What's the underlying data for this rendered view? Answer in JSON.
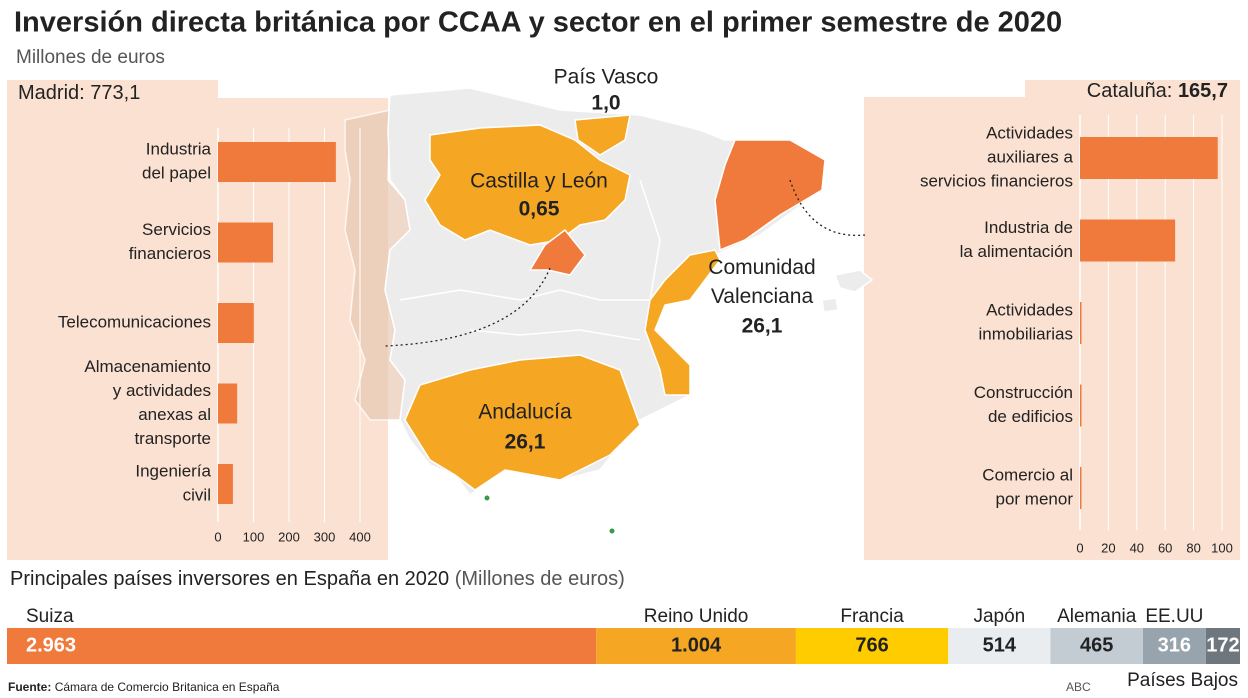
{
  "title": "Inversión directa británica por CCAA y sector en el primer semestre de 2020",
  "subtitle": "Millones de euros",
  "chart_data": [
    {
      "type": "bar",
      "title": "Madrid:",
      "total": 773.1,
      "total_label": "773,1",
      "bold_total": false,
      "categories": [
        [
          "Industria",
          "del papel"
        ],
        [
          "Servicios",
          "financieros"
        ],
        [
          "Telecomunicaciones"
        ],
        [
          "Almacenamiento",
          "y actividades",
          "anexas al",
          "transporte"
        ],
        [
          "Ingeniería",
          "civil"
        ]
      ],
      "values": [
        332,
        155,
        101,
        54,
        42
      ],
      "color": "#f07a3c",
      "xlim": [
        0,
        400
      ],
      "xticks": [
        0,
        100,
        200,
        300,
        400
      ],
      "grid": true
    },
    {
      "type": "bar",
      "title": "Cataluña:",
      "total": 165.7,
      "total_label": "165,7",
      "bold_total": true,
      "categories": [
        [
          "Actividades",
          "auxiliares a",
          "servicios financieros"
        ],
        [
          "Industria de",
          "la alimentación"
        ],
        [
          "Actividades",
          "inmobiliarias"
        ],
        [
          "Construcción",
          "de edificios"
        ],
        [
          "Comercio al",
          "por menor"
        ]
      ],
      "values": [
        97,
        67,
        1,
        0.4,
        0.3
      ],
      "color": "#f07a3c",
      "xlim": [
        0,
        100
      ],
      "xticks": [
        0,
        20,
        40,
        60,
        80,
        100
      ],
      "grid": true
    },
    {
      "type": "map",
      "regions": [
        {
          "name": [
            "País Vasco"
          ],
          "value": 1.0,
          "value_label": "1,0",
          "color": "#f5a623"
        },
        {
          "name": [
            "Castilla y León"
          ],
          "value": 0.65,
          "value_label": "0,65",
          "color": "#f5a623"
        },
        {
          "name": [
            "Comunidad",
            "Valenciana"
          ],
          "value": 26.1,
          "value_label": "26,1",
          "color": "#f5a623"
        },
        {
          "name": [
            "Andalucía"
          ],
          "value": 26.1,
          "value_label": "26,1",
          "color": "#f5a623"
        }
      ]
    },
    {
      "type": "stacked-bar",
      "title": "Principales países inversores en España en 2020",
      "unit": "(Millones de euros)",
      "series": [
        {
          "name": "Suiza",
          "values": [
            2963
          ],
          "value_labels": [
            "2.963"
          ],
          "color": "#f07a3c",
          "label_color": "#ffffff"
        },
        {
          "name": "Reino Unido",
          "values": [
            1004
          ],
          "value_labels": [
            "1.004"
          ],
          "color": "#f5a623",
          "label_color": "#222222"
        },
        {
          "name": "Francia",
          "values": [
            766
          ],
          "value_labels": [
            "766"
          ],
          "color": "#ffcc00",
          "label_color": "#222222"
        },
        {
          "name": "Japón",
          "values": [
            514
          ],
          "value_labels": [
            "514"
          ],
          "color": "#e9edf0",
          "label_color": "#222222"
        },
        {
          "name": "Alemania",
          "values": [
            465
          ],
          "value_labels": [
            "465"
          ],
          "color": "#c3ccd3",
          "label_color": "#222222"
        },
        {
          "name": "EE.UU",
          "values": [
            316
          ],
          "value_labels": [
            "316"
          ],
          "color": "#98a4ad",
          "label_color": "#ffffff"
        },
        {
          "name": "Países Bajos",
          "values": [
            172
          ],
          "value_labels": [
            "172"
          ],
          "color": "#6e777d",
          "label_color": "#ffffff"
        }
      ]
    }
  ],
  "source": {
    "label": "Fuente:",
    "text": "Cámara de Comercio Britanica en España"
  },
  "credit": "ABC"
}
